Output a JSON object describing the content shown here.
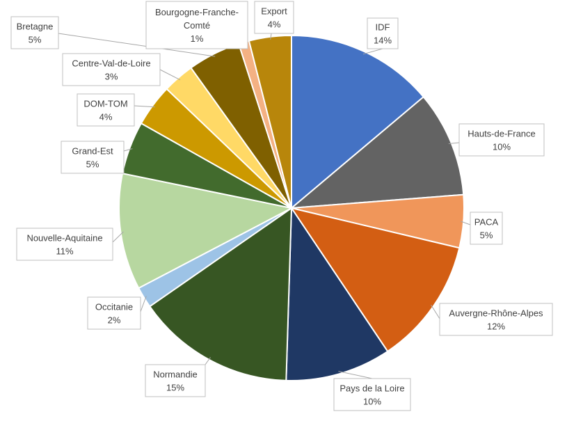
{
  "chart_data": {
    "type": "pie",
    "title": "",
    "legend": "none",
    "slices": [
      {
        "name": "IDF",
        "value": 14,
        "label": "14%",
        "color": "#4472C4"
      },
      {
        "name": "Hauts-de-France",
        "value": 10,
        "label": "10%",
        "color": "#636363"
      },
      {
        "name": "PACA",
        "value": 5,
        "label": "5%",
        "color": "#F0965A"
      },
      {
        "name": "Auvergne-Rhône-Alpes",
        "value": 12,
        "label": "12%",
        "color": "#D35E13"
      },
      {
        "name": "Pays de la Loire",
        "value": 10,
        "label": "10%",
        "color": "#1F3864"
      },
      {
        "name": "Normandie",
        "value": 15,
        "label": "15%",
        "color": "#375623"
      },
      {
        "name": "Occitanie",
        "value": 2,
        "label": "2%",
        "color": "#9DC3E6"
      },
      {
        "name": "Nouvelle-Aquitaine",
        "value": 11,
        "label": "11%",
        "color": "#B7D7A0"
      },
      {
        "name": "Grand-Est",
        "value": 5,
        "label": "5%",
        "color": "#426B2D"
      },
      {
        "name": "DOM-TOM",
        "value": 4,
        "label": "4%",
        "color": "#CC9900"
      },
      {
        "name": "Centre-Val-de-Loire",
        "value": 3,
        "label": "3%",
        "color": "#FFD966"
      },
      {
        "name": "Bretagne",
        "value": 5,
        "label": "5%",
        "color": "#7F6000"
      },
      {
        "name": "Bourgogne-Franche-Comté",
        "value": 1,
        "label": "1%",
        "color": "#F4B183"
      },
      {
        "name": "Export",
        "value": 4,
        "label": "4%",
        "color": "#B8860B"
      }
    ]
  }
}
